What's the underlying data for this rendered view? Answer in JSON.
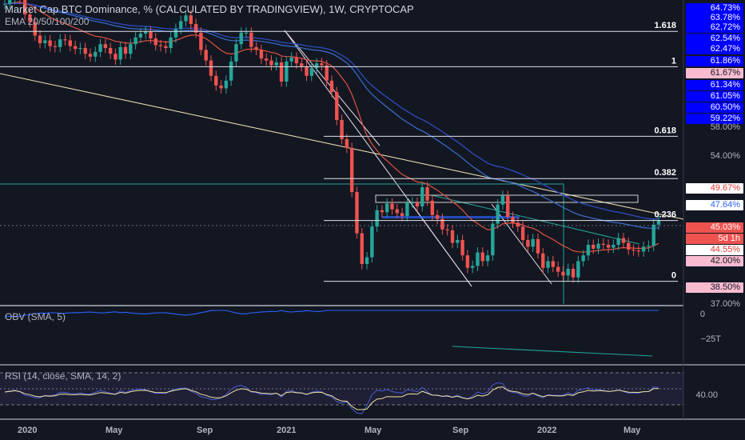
{
  "header": {
    "title": "Market Cap BTC Dominance, % (CALCULATED BY TRADINGVIEW), 1W, CRYPTOCAP",
    "indicator": "EMA 20/50/100/200"
  },
  "panes": {
    "obv_label": "OBV (SMA, 5)",
    "obv_tick": "0",
    "obv_tick2": "−25T",
    "rsi_label": "RSI (14, close, SMA, 14, 2)",
    "rsi_tick": "40.00"
  },
  "price_tags": [
    {
      "text": "64.73%",
      "style": "blue"
    },
    {
      "text": "63.78%",
      "style": "blue"
    },
    {
      "text": "62.72%",
      "style": "blue"
    },
    {
      "text": "62.54%",
      "style": "blue"
    },
    {
      "text": "62.47%",
      "style": "blue"
    },
    {
      "text": "61.86%",
      "style": "blue"
    },
    {
      "text": "61.67%",
      "style": "pink"
    },
    {
      "text": "61.34%",
      "style": "blue"
    },
    {
      "text": "61.05%",
      "style": "blue"
    },
    {
      "text": "60.50%",
      "style": "blue"
    },
    {
      "text": "59.22%",
      "style": "blue"
    },
    {
      "text": "58.00%",
      "style": "plain"
    },
    {
      "text": "54.00%",
      "style": "plain"
    },
    {
      "text": "49.67%",
      "style": "white-red"
    },
    {
      "text": "47.64%",
      "style": "white-blue"
    },
    {
      "text": "45.03%",
      "style": "red"
    },
    {
      "text": "5d 1h",
      "style": "red"
    },
    {
      "text": "44.55%",
      "style": "white-red"
    },
    {
      "text": "42.00%",
      "style": "pink"
    },
    {
      "text": "38.50%",
      "style": "pink"
    },
    {
      "text": "37.00%",
      "style": "plain"
    }
  ],
  "fib_levels": [
    {
      "label": "1.618",
      "value": 64.73
    },
    {
      "label": "1",
      "value": 61.05
    },
    {
      "label": "0.618",
      "value": 53.8
    },
    {
      "label": "0.382",
      "value": 49.4
    },
    {
      "label": "0.236",
      "value": 45.03
    },
    {
      "label": "0",
      "value": 38.7
    }
  ],
  "colors": {
    "background": "#131722",
    "up": "#26a69a",
    "down": "#ef5350",
    "tag_blue": "#0000ff",
    "ema20": "#e0523f",
    "ema50": "#3a6fd0",
    "ema100": "#1f9a97",
    "ema200": "#2f3fbf",
    "obv": "#2962ff",
    "rsi": "#4a5bd4",
    "rsi_ma": "#f1e4a0",
    "rsi_band": "#7e57c2"
  },
  "x_ticks": [
    "2020",
    "May",
    "Sep",
    "2021",
    "May",
    "Sep",
    "2022",
    "May"
  ],
  "chart_data": {
    "type": "candlestick",
    "title": "Market Cap BTC Dominance, % (CALCULATED BY TRADINGVIEW), 1W, CRYPTOCAP",
    "ylabel": "",
    "ylim": [
      36.5,
      65.5
    ],
    "x_labels": [
      "2020",
      "May",
      "Sep",
      "2021",
      "May",
      "Sep",
      "2022",
      "May"
    ],
    "close": [
      67.6,
      68.1,
      68.6,
      68.1,
      66.5,
      65.7,
      64.3,
      63.5,
      63.8,
      63.2,
      63.1,
      63.9,
      63.8,
      63.2,
      62.9,
      63.0,
      62.4,
      62.1,
      62.6,
      63.4,
      63.0,
      62.4,
      61.8,
      63.1,
      62.4,
      63.4,
      64.1,
      64.5,
      64.7,
      64.0,
      63.3,
      63.2,
      63.0,
      64.1,
      65.0,
      65.8,
      66.4,
      65.5,
      64.6,
      62.8,
      61.7,
      60.1,
      59.1,
      58.8,
      59.6,
      61.6,
      63.4,
      64.6,
      64.6,
      63.1,
      62.8,
      61.9,
      61.7,
      61.2,
      61.5,
      59.5,
      61.6,
      62.0,
      61.4,
      61.1,
      60.1,
      60.9,
      61.4,
      61.2,
      59.6,
      58.4,
      55.5,
      53.5,
      52.6,
      48.0,
      43.7,
      40.5,
      41.2,
      44.4,
      46.1,
      45.9,
      46.8,
      46.2,
      45.8,
      45.5,
      46.9,
      46.9,
      46.5,
      48.5,
      47.1,
      45.6,
      45.2,
      44.1,
      44.0,
      42.7,
      43.0,
      41.4,
      40.1,
      40.3,
      41.7,
      40.8,
      41.4,
      44.7,
      46.7,
      47.6,
      45.4,
      44.8,
      44.4,
      43.0,
      42.3,
      43.1,
      41.6,
      40.1,
      40.8,
      40.2,
      39.7,
      39.3,
      40.0,
      39.1,
      40.8,
      41.4,
      42.5,
      42.1,
      42.6,
      42.5,
      42.2,
      42.5,
      43.2,
      42.7,
      42.0,
      41.9,
      41.8,
      42.3,
      42.4,
      44.6,
      45.0
    ]
  }
}
